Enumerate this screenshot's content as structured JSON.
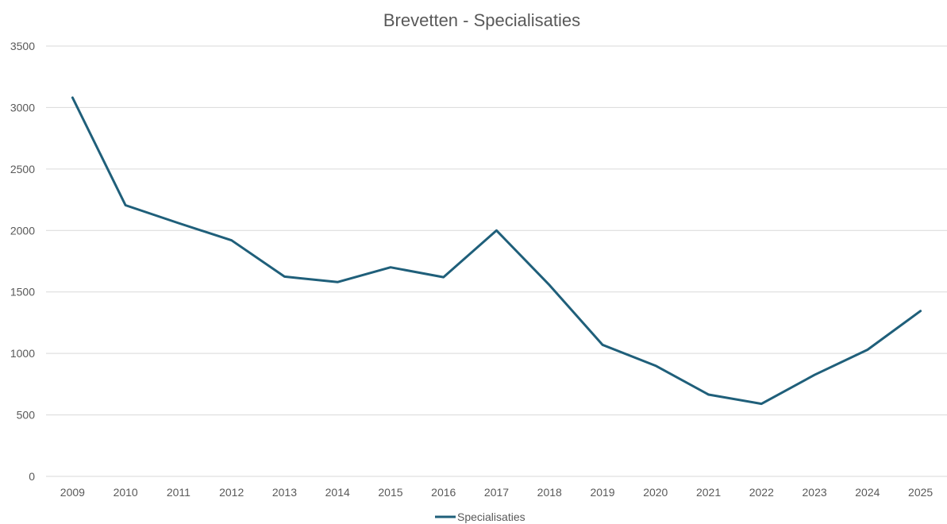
{
  "chart_data": {
    "type": "line",
    "title": "Brevetten - Specialisaties",
    "xlabel": "",
    "ylabel": "",
    "categories": [
      "2009",
      "2010",
      "2011",
      "2012",
      "2013",
      "2014",
      "2015",
      "2016",
      "2017",
      "2018",
      "2019",
      "2020",
      "2021",
      "2022",
      "2023",
      "2024",
      "2025"
    ],
    "ylim": [
      0,
      3500
    ],
    "y_ticks": [
      "0",
      "500",
      "1000",
      "1500",
      "2000",
      "2500",
      "3000",
      "3500"
    ],
    "y_tick_values": [
      0,
      500,
      1000,
      1500,
      2000,
      2500,
      3000,
      3500
    ],
    "grid": true,
    "legend_position": "bottom",
    "series": [
      {
        "name": "Specialisaties",
        "color": "#1f5f7a",
        "values": [
          3080,
          2205,
          2060,
          1920,
          1625,
          1580,
          1700,
          1620,
          2000,
          1555,
          1070,
          900,
          665,
          590,
          825,
          1030,
          1345
        ]
      }
    ]
  }
}
